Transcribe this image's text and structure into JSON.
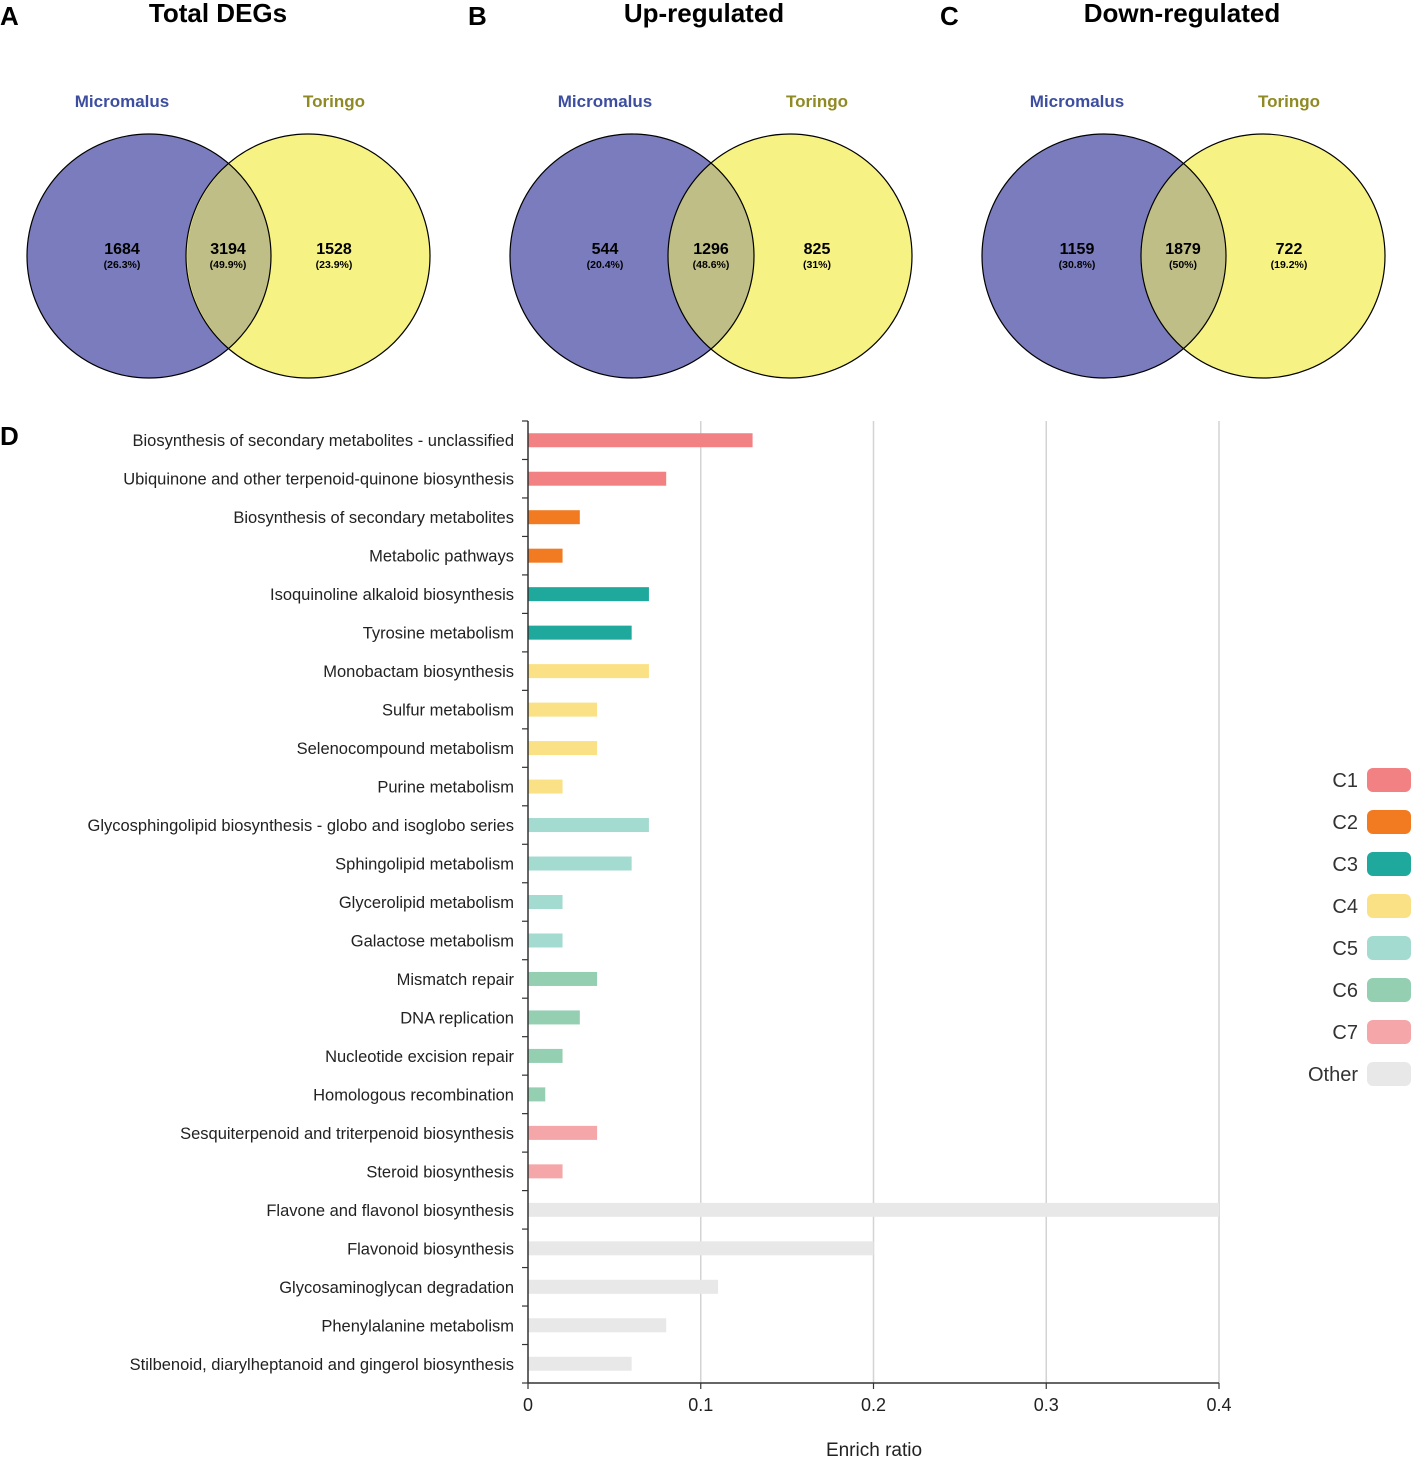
{
  "venn": [
    {
      "panel": "A",
      "title": "Total DEGs",
      "set_a": "Micromalus",
      "set_b": "Toringo",
      "a_only": {
        "count": "1684",
        "pct": "(26.3%)"
      },
      "both": {
        "count": "3194",
        "pct": "(49.9%)"
      },
      "b_only": {
        "count": "1528",
        "pct": "(23.9%)"
      }
    },
    {
      "panel": "B",
      "title": "Up-regulated",
      "set_a": "Micromalus",
      "set_b": "Toringo",
      "a_only": {
        "count": "544",
        "pct": "(20.4%)"
      },
      "both": {
        "count": "1296",
        "pct": "(48.6%)"
      },
      "b_only": {
        "count": "825",
        "pct": "(31%)"
      }
    },
    {
      "panel": "C",
      "title": "Down-regulated",
      "set_a": "Micromalus",
      "set_b": "Toringo",
      "a_only": {
        "count": "1159",
        "pct": "(30.8%)"
      },
      "both": {
        "count": "1879",
        "pct": "(50%)"
      },
      "b_only": {
        "count": "722",
        "pct": "(19.2%)"
      }
    }
  ],
  "colors": {
    "set_a_fill": "#7a7cbd",
    "set_b_fill": "#f6f283",
    "overlap_fill": "#bfbe86",
    "set_a_label": "#3d4ea0",
    "set_b_label": "#8f8a24",
    "grid": "#d3d3d3",
    "axis": "#333333"
  },
  "chart_data": {
    "type": "bar",
    "orientation": "horizontal",
    "panel": "D",
    "xlabel": "Enrich ratio",
    "xlim": [
      0,
      0.4
    ],
    "xticks": [
      0,
      0.1,
      0.2,
      0.3,
      0.4
    ],
    "xtick_labels": [
      "0",
      "0.1",
      "0.2",
      "0.3",
      "0.4"
    ],
    "categories": [
      "Biosynthesis of secondary metabolites - unclassified",
      "Ubiquinone and other terpenoid-quinone biosynthesis",
      "Biosynthesis of secondary metabolites",
      "Metabolic pathways",
      "Isoquinoline alkaloid biosynthesis",
      "Tyrosine metabolism",
      "Monobactam biosynthesis",
      "Sulfur metabolism",
      "Selenocompound metabolism",
      "Purine metabolism",
      "Glycosphingolipid biosynthesis - globo and isoglobo series",
      "Sphingolipid metabolism",
      "Glycerolipid metabolism",
      "Galactose metabolism",
      "Mismatch repair",
      "DNA replication",
      "Nucleotide excision repair",
      "Homologous recombination",
      "Sesquiterpenoid and triterpenoid biosynthesis",
      "Steroid biosynthesis",
      "Flavone and flavonol biosynthesis",
      "Flavonoid biosynthesis",
      "Glycosaminoglycan degradation",
      "Phenylalanine metabolism",
      "Stilbenoid, diarylheptanoid and gingerol biosynthesis"
    ],
    "values": [
      0.13,
      0.08,
      0.03,
      0.02,
      0.07,
      0.06,
      0.07,
      0.04,
      0.04,
      0.02,
      0.07,
      0.06,
      0.02,
      0.02,
      0.04,
      0.03,
      0.02,
      0.01,
      0.04,
      0.02,
      0.4,
      0.2,
      0.11,
      0.08,
      0.06
    ],
    "groups": [
      "C1",
      "C1",
      "C2",
      "C2",
      "C3",
      "C3",
      "C4",
      "C4",
      "C4",
      "C4",
      "C5",
      "C5",
      "C5",
      "C5",
      "C6",
      "C6",
      "C6",
      "C6",
      "C7",
      "C7",
      "Other",
      "Other",
      "Other",
      "Other",
      "Other"
    ],
    "legend": [
      {
        "name": "C1",
        "color": "#f28183"
      },
      {
        "name": "C2",
        "color": "#f27b22"
      },
      {
        "name": "C3",
        "color": "#1fa89c"
      },
      {
        "name": "C4",
        "color": "#fbe185"
      },
      {
        "name": "C5",
        "color": "#a4dbd0"
      },
      {
        "name": "C6",
        "color": "#94cfb1"
      },
      {
        "name": "C7",
        "color": "#f4a6a8"
      },
      {
        "name": "Other",
        "color": "#e8e8e8"
      }
    ],
    "legend_position": "right",
    "grid": true
  }
}
